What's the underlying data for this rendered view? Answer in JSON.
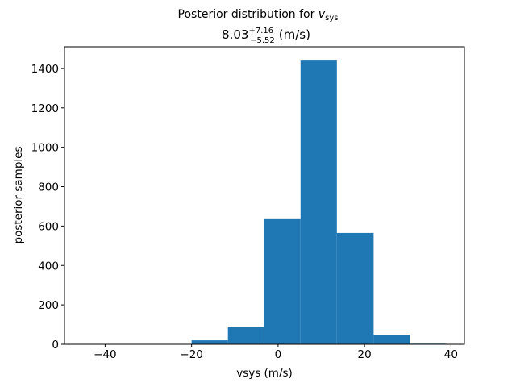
{
  "chart_data": {
    "type": "histogram",
    "title": {
      "text": "Posterior distribution for ",
      "symbol": "v",
      "subscript": "sys"
    },
    "subtitle": {
      "value": "8.03",
      "upper": "+7.16",
      "lower": "−5.52",
      "unit": "(m/s)"
    },
    "x_label": "vsys (m/s)",
    "y_label": "posterior samples",
    "bins": [
      -45.2,
      -36.8,
      -28.4,
      -20.0,
      -11.6,
      -3.2,
      5.2,
      13.6,
      22.1,
      30.5,
      38.9
    ],
    "values": [
      0,
      0,
      0,
      20,
      90,
      635,
      1440,
      565,
      49,
      3
    ],
    "color": "#1f77b4",
    "xlim": [
      -49.4,
      43.1
    ],
    "ylim": [
      0,
      1510
    ],
    "xticks": [
      {
        "value": -40,
        "label": "−40"
      },
      {
        "value": -20,
        "label": "−20"
      },
      0,
      20,
      40
    ],
    "yticks": [
      0,
      200,
      400,
      600,
      800,
      1000,
      1200,
      1400
    ]
  }
}
